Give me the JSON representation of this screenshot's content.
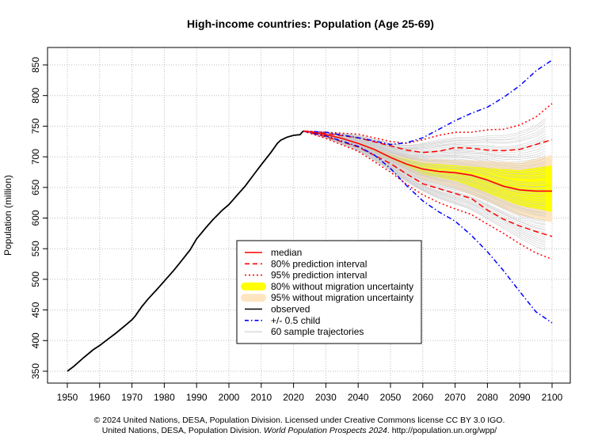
{
  "chart_data": {
    "type": "line",
    "title": "High-income countries: Population (Age 25-69)",
    "xlabel": "",
    "ylabel": "Population (million)",
    "xlim": [
      1946,
      2104
    ],
    "ylim": [
      335,
      880
    ],
    "grid": true,
    "x_ticks": [
      1950,
      1960,
      1970,
      1980,
      1990,
      2000,
      2010,
      2020,
      2030,
      2040,
      2050,
      2060,
      2070,
      2080,
      2090,
      2100
    ],
    "y_ticks": [
      350,
      400,
      450,
      500,
      550,
      600,
      650,
      700,
      750,
      800,
      850
    ],
    "legend_position": "center-bottom",
    "legend": [
      {
        "label": "median",
        "style": "median"
      },
      {
        "label": "80% prediction interval",
        "style": "pi80"
      },
      {
        "label": "95% prediction interval",
        "style": "pi95"
      },
      {
        "label": "80% without migration uncertainty",
        "style": "band80"
      },
      {
        "label": "95% without migration uncertainty",
        "style": "band95"
      },
      {
        "label": "observed",
        "style": "observed"
      },
      {
        "label": "+/- 0.5 child",
        "style": "child"
      },
      {
        "label": "60 sample trajectories",
        "style": "traj"
      }
    ],
    "colors": {
      "median": "#ff0000",
      "pi80": "#ff0000",
      "pi95": "#ff0000",
      "band80": "#ffff00",
      "band95": "#fde5c0",
      "observed": "#000000",
      "child": "#0000ff",
      "traj": "#c8c8c8",
      "grid": "#bdbdbd"
    },
    "series": [
      {
        "name": "observed",
        "x": [
          1950,
          1952,
          1955,
          1958,
          1960,
          1963,
          1965,
          1968,
          1970,
          1971,
          1973,
          1975,
          1978,
          1980,
          1983,
          1985,
          1988,
          1990,
          1993,
          1995,
          1998,
          2000,
          2003,
          2005,
          2008,
          2010,
          2013,
          2015,
          2016,
          2018,
          2020,
          2022,
          2023
        ],
        "y": [
          350,
          358,
          372,
          385,
          392,
          404,
          412,
          425,
          434,
          440,
          455,
          468,
          485,
          497,
          515,
          528,
          548,
          566,
          585,
          597,
          613,
          622,
          640,
          652,
          673,
          687,
          707,
          722,
          727,
          732,
          735,
          736,
          742
        ]
      },
      {
        "name": "median",
        "x": [
          2023,
          2025,
          2030,
          2035,
          2040,
          2045,
          2050,
          2055,
          2060,
          2065,
          2070,
          2075,
          2080,
          2085,
          2090,
          2095,
          2100
        ],
        "y": [
          742,
          741,
          736,
          730,
          722,
          712,
          699,
          688,
          680,
          676,
          674,
          670,
          662,
          652,
          646,
          644,
          644
        ]
      },
      {
        "name": "80% PI upper",
        "x": [
          2023,
          2030,
          2040,
          2050,
          2055,
          2060,
          2065,
          2070,
          2075,
          2080,
          2085,
          2090,
          2095,
          2100
        ],
        "y": [
          742,
          738,
          731,
          718,
          711,
          707,
          709,
          715,
          714,
          711,
          710,
          712,
          720,
          728
        ]
      },
      {
        "name": "80% PI lower",
        "x": [
          2023,
          2030,
          2040,
          2050,
          2055,
          2060,
          2065,
          2070,
          2075,
          2080,
          2085,
          2090,
          2095,
          2100
        ],
        "y": [
          742,
          733,
          716,
          689,
          672,
          656,
          648,
          640,
          632,
          613,
          598,
          587,
          578,
          570
        ]
      },
      {
        "name": "95% PI upper",
        "x": [
          2023,
          2030,
          2040,
          2050,
          2055,
          2060,
          2065,
          2070,
          2075,
          2080,
          2085,
          2090,
          2095,
          2100
        ],
        "y": [
          742,
          740,
          737,
          725,
          722,
          728,
          735,
          740,
          740,
          744,
          745,
          752,
          765,
          787
        ]
      },
      {
        "name": "95% PI lower",
        "x": [
          2023,
          2030,
          2040,
          2050,
          2055,
          2060,
          2065,
          2070,
          2075,
          2080,
          2085,
          2090,
          2095,
          2100
        ],
        "y": [
          742,
          730,
          709,
          675,
          655,
          638,
          625,
          615,
          606,
          590,
          575,
          558,
          543,
          533
        ]
      },
      {
        "name": "+0.5 child",
        "x": [
          2023,
          2030,
          2040,
          2045,
          2050,
          2055,
          2060,
          2065,
          2070,
          2075,
          2080,
          2085,
          2090,
          2095,
          2100
        ],
        "y": [
          742,
          740,
          731,
          726,
          720,
          723,
          731,
          745,
          759,
          771,
          781,
          797,
          816,
          840,
          858
        ]
      },
      {
        "name": "-0.5 child",
        "x": [
          2023,
          2030,
          2040,
          2045,
          2050,
          2055,
          2060,
          2065,
          2070,
          2075,
          2080,
          2085,
          2090,
          2095,
          2100
        ],
        "y": [
          742,
          734,
          717,
          703,
          681,
          653,
          628,
          610,
          595,
          572,
          545,
          514,
          480,
          447,
          429
        ]
      },
      {
        "name": "80% without migration uncertainty",
        "x": [
          2040,
          2050,
          2060,
          2070,
          2080,
          2090,
          2100
        ],
        "upper": [
          723,
          703,
          690,
          686,
          682,
          678,
          686
        ],
        "lower": [
          720,
          696,
          671,
          661,
          641,
          620,
          610
        ]
      },
      {
        "name": "95% without migration uncertainty",
        "x": [
          2040,
          2050,
          2060,
          2070,
          2080,
          2090,
          2100
        ],
        "upper": [
          725,
          707,
          697,
          695,
          693,
          690,
          703
        ],
        "lower": [
          718,
          692,
          663,
          648,
          627,
          604,
          593
        ]
      }
    ]
  },
  "credits": {
    "line1": "© 2024 United Nations, DESA, Population Division. Licensed under Creative Commons license CC BY 3.0 IGO.",
    "line2_prefix": "United Nations, DESA, Population Division. ",
    "line2_italic": "World Population Prospects 2024",
    "line2_suffix": ". http://population.un.org/wpp/"
  }
}
